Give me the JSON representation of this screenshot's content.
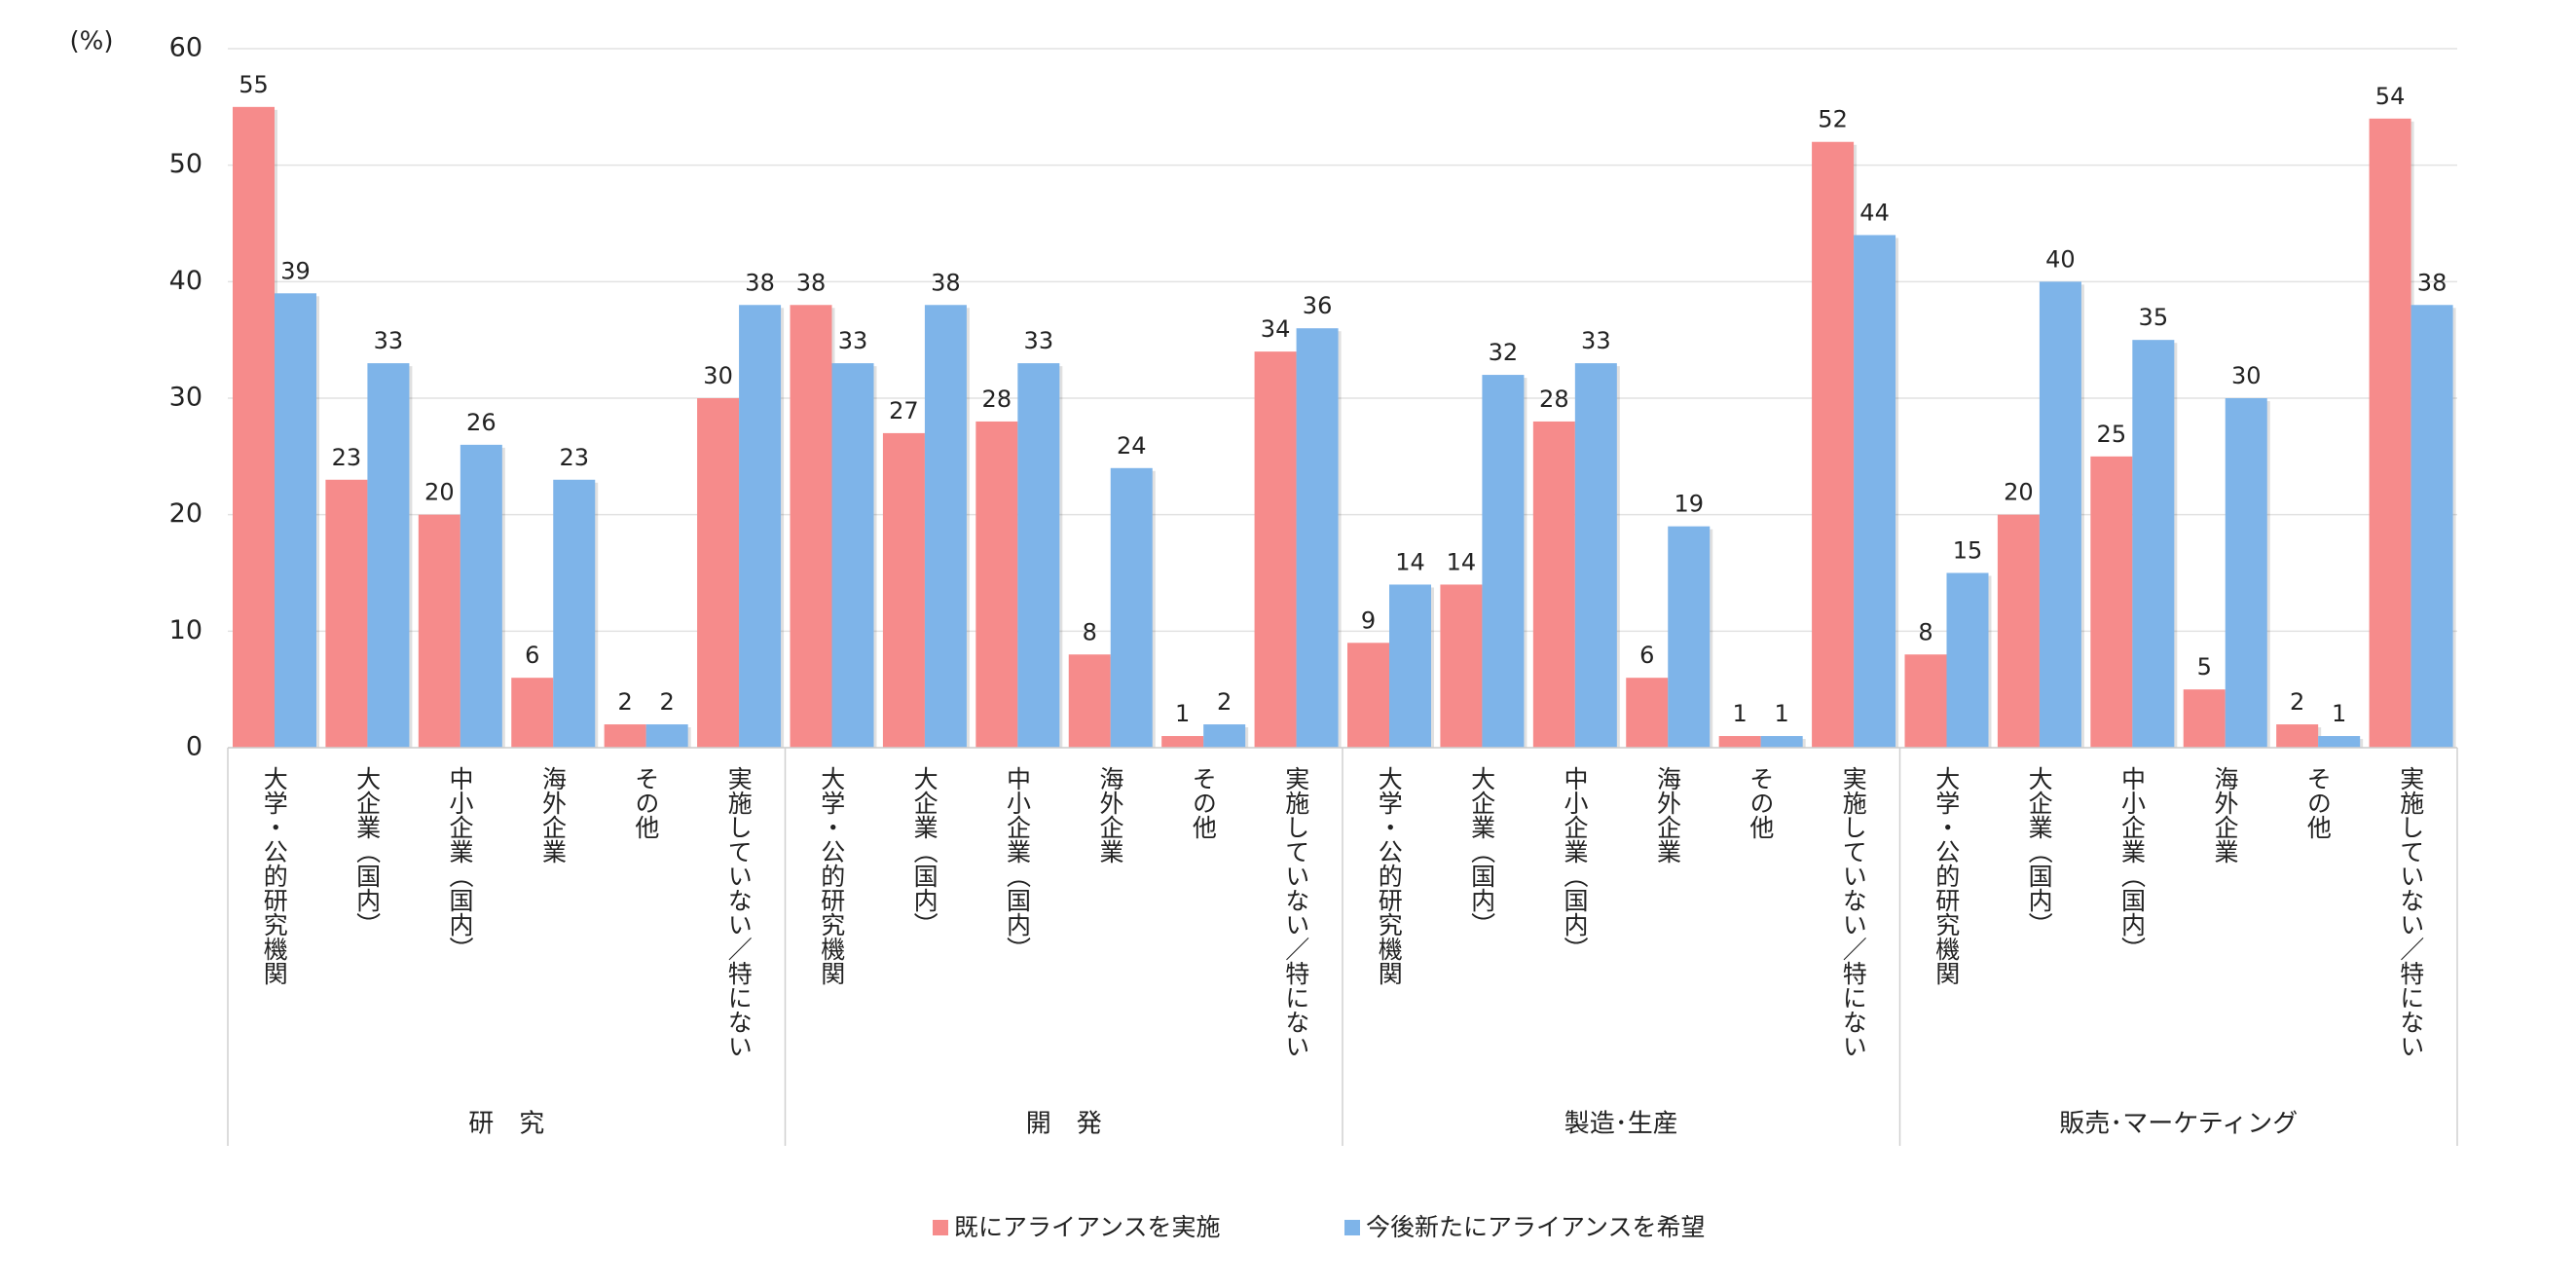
{
  "chart_data": {
    "type": "grouped_bar",
    "y_label": "(%)",
    "ylim": [
      0,
      60
    ],
    "yticks": [
      0,
      10,
      20,
      30,
      40,
      50,
      60
    ],
    "grid": true,
    "groups": [
      {
        "name": "研　究",
        "categories": [
          "大学・公的研究機関",
          "大企業（国内）",
          "中小企業（国内）",
          "海外企業",
          "その他",
          "実施していない／特にない"
        ]
      },
      {
        "name": "開　発",
        "categories": [
          "大学・公的研究機関",
          "大企業（国内）",
          "中小企業（国内）",
          "海外企業",
          "その他",
          "実施していない／特にない"
        ]
      },
      {
        "name": "製造･生産",
        "categories": [
          "大学・公的研究機関",
          "大企業（国内）",
          "中小企業（国内）",
          "海外企業",
          "その他",
          "実施していない／特にない"
        ]
      },
      {
        "name": "販売･マーケティング",
        "categories": [
          "大学・公的研究機関",
          "大企業（国内）",
          "中小企業（国内）",
          "海外企業",
          "その他",
          "実施していない／特にない"
        ]
      }
    ],
    "series": [
      {
        "name": "既にアライアンスを実施",
        "color": "#f68b8b",
        "values": [
          55,
          23,
          20,
          6,
          2,
          30,
          38,
          27,
          28,
          8,
          1,
          34,
          9,
          14,
          28,
          6,
          1,
          52,
          8,
          20,
          25,
          5,
          2,
          54
        ]
      },
      {
        "name": "今後新たにアライアンスを希望",
        "color": "#7eb4e9",
        "values": [
          39,
          33,
          26,
          23,
          2,
          38,
          33,
          38,
          33,
          24,
          2,
          36,
          14,
          32,
          33,
          19,
          1,
          44,
          15,
          40,
          35,
          30,
          1,
          38
        ]
      }
    ]
  }
}
